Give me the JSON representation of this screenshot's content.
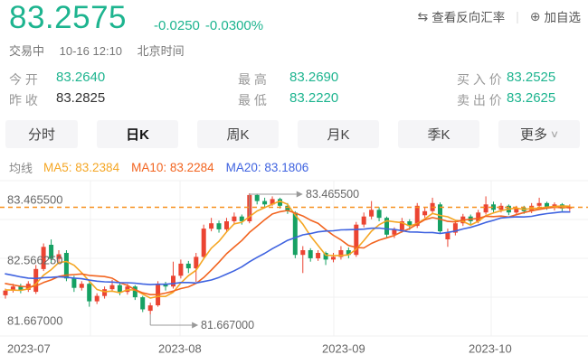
{
  "colors": {
    "quote_green": "#1db48f",
    "up_red": "#eb4432",
    "down_green": "#16a163",
    "ma5": "#f5a623",
    "ma10": "#f2641f",
    "ma20": "#3f63e0",
    "dash_orange": "#f78f1e",
    "grid_line": "#f0f0f2",
    "tab_bg": "#f5f5f7",
    "callout_gray": "#999999"
  },
  "quote": {
    "price": "83.2575",
    "change": "-0.0250",
    "change_pct": "-0.0300%"
  },
  "status": {
    "trading": "交易中",
    "datetime": "10-16 12:10",
    "timezone": "北京时间"
  },
  "header_links": {
    "swap_icon": "⇆",
    "reverse_rate": "查看反向汇率",
    "separator": "|",
    "plus_icon": "⊕",
    "add_watchlist": "加自选"
  },
  "quote_table": {
    "rows": [
      [
        {
          "label": "今  开",
          "value": "83.2640"
        },
        {
          "label": "最  高",
          "value": "83.2690"
        },
        {
          "label": "买 入 价",
          "value": "83.2525"
        }
      ],
      [
        {
          "label": "昨  收",
          "value": "83.2825"
        },
        {
          "label": "最  低",
          "value": "83.2220"
        },
        {
          "label": "卖 出 价",
          "value": "83.2625"
        }
      ]
    ]
  },
  "tabs": [
    {
      "label": "分时"
    },
    {
      "label": "日K",
      "active": true
    },
    {
      "label": "周K"
    },
    {
      "label": "月K"
    },
    {
      "label": "季K"
    },
    {
      "label": "更多",
      "chevron": "∨"
    }
  ],
  "ma_legend": {
    "title": "均线",
    "items": [
      {
        "text": "MA5: 83.2384"
      },
      {
        "text": "MA10: 83.2284"
      },
      {
        "text": "MA20: 83.1806"
      }
    ]
  },
  "chart_data": {
    "type": "candlestick",
    "x_labels": [
      "2023-07",
      "2023-08",
      "2023-09",
      "2023-10"
    ],
    "y_axis": {
      "labels": [
        "83.465500",
        "82.566250",
        "81.667000"
      ],
      "values": [
        83.4655,
        82.56625,
        81.667
      ]
    },
    "ylim": [
      81.55,
      83.55
    ],
    "grid": true,
    "current_price": 83.2575,
    "current_price_line": "dashed-orange",
    "callouts": {
      "high": {
        "label": "83.465500",
        "value": 83.4655,
        "index": 32
      },
      "low": {
        "label": "81.667000",
        "value": 81.667,
        "index": 19
      }
    },
    "ma_periods": [
      5,
      10,
      20
    ],
    "ma_lead_in_closes": [
      82.55,
      82.52,
      82.5,
      82.48,
      82.45,
      82.42,
      82.4,
      82.38,
      82.35,
      82.32,
      82.3,
      82.28,
      82.25,
      82.22,
      82.2,
      82.15,
      82.1,
      82.05,
      82.0,
      81.98
    ],
    "candles": [
      [
        81.95,
        82.05,
        81.9,
        82.02
      ],
      [
        82.02,
        82.12,
        81.99,
        82.08
      ],
      [
        82.08,
        82.12,
        81.98,
        82.03
      ],
      [
        82.03,
        82.16,
        82.0,
        82.12
      ],
      [
        82.0,
        82.4,
        81.97,
        82.34
      ],
      [
        82.34,
        82.72,
        82.31,
        82.67
      ],
      [
        82.7,
        82.78,
        82.42,
        82.49
      ],
      [
        82.49,
        82.62,
        82.44,
        82.56
      ],
      [
        82.58,
        82.62,
        82.16,
        82.2
      ],
      [
        82.2,
        82.24,
        82.0,
        82.06
      ],
      [
        82.06,
        82.16,
        82.02,
        82.12
      ],
      [
        82.12,
        82.14,
        81.78,
        81.86
      ],
      [
        81.86,
        81.98,
        81.82,
        81.94
      ],
      [
        81.94,
        82.08,
        81.9,
        82.04
      ],
      [
        82.04,
        82.18,
        82.0,
        82.1
      ],
      [
        82.1,
        82.13,
        81.95,
        82.0
      ],
      [
        82.0,
        82.12,
        81.96,
        82.08
      ],
      [
        82.08,
        82.1,
        81.88,
        81.92
      ],
      [
        81.92,
        81.94,
        81.7,
        81.74
      ],
      [
        81.72,
        81.84,
        81.667,
        81.8
      ],
      [
        81.8,
        82.16,
        81.78,
        82.12
      ],
      [
        82.12,
        82.15,
        82.02,
        82.08
      ],
      [
        82.08,
        82.45,
        82.05,
        82.24
      ],
      [
        82.24,
        82.48,
        82.2,
        82.42
      ],
      [
        82.42,
        82.46,
        82.28,
        82.35
      ],
      [
        82.35,
        82.58,
        82.15,
        82.52
      ],
      [
        82.52,
        83.0,
        82.48,
        82.94
      ],
      [
        82.94,
        83.1,
        82.9,
        83.02
      ],
      [
        83.02,
        83.06,
        82.88,
        82.93
      ],
      [
        82.93,
        83.1,
        82.9,
        83.05
      ],
      [
        83.05,
        83.18,
        83.0,
        83.12
      ],
      [
        83.12,
        83.15,
        83.0,
        83.05
      ],
      [
        83.05,
        83.4655,
        83.02,
        83.44
      ],
      [
        83.44,
        83.46,
        83.3,
        83.35
      ],
      [
        83.35,
        83.4,
        83.26,
        83.3
      ],
      [
        83.3,
        83.42,
        83.28,
        83.38
      ],
      [
        83.38,
        83.4,
        83.24,
        83.28
      ],
      [
        83.28,
        83.32,
        83.16,
        83.2
      ],
      [
        83.18,
        83.2,
        82.5,
        82.55
      ],
      [
        82.55,
        82.68,
        82.28,
        82.62
      ],
      [
        82.62,
        82.65,
        82.45,
        82.5
      ],
      [
        82.5,
        82.62,
        82.46,
        82.58
      ],
      [
        82.58,
        82.6,
        82.4,
        82.48
      ],
      [
        82.48,
        82.58,
        82.44,
        82.52
      ],
      [
        82.52,
        82.68,
        82.48,
        82.62
      ],
      [
        82.62,
        82.66,
        82.5,
        82.55
      ],
      [
        82.55,
        83.04,
        82.52,
        83.0
      ],
      [
        83.0,
        83.18,
        82.96,
        83.12
      ],
      [
        83.12,
        83.35,
        83.08,
        83.22
      ],
      [
        83.22,
        83.26,
        83.05,
        83.1
      ],
      [
        83.1,
        83.12,
        82.8,
        82.85
      ],
      [
        82.85,
        82.96,
        82.8,
        82.92
      ],
      [
        82.92,
        83.1,
        82.88,
        83.05
      ],
      [
        83.05,
        83.08,
        82.92,
        82.98
      ],
      [
        82.98,
        83.32,
        82.95,
        83.28
      ],
      [
        83.14,
        83.26,
        83.1,
        83.2
      ],
      [
        83.2,
        83.4,
        83.16,
        83.32
      ],
      [
        83.3,
        83.33,
        82.86,
        82.9
      ],
      [
        82.78,
        82.94,
        82.67,
        82.88
      ],
      [
        82.88,
        83.06,
        82.84,
        83.02
      ],
      [
        83.02,
        83.16,
        82.98,
        83.12
      ],
      [
        83.12,
        83.15,
        83.0,
        83.05
      ],
      [
        83.05,
        83.22,
        83.02,
        83.18
      ],
      [
        83.18,
        83.42,
        83.15,
        83.3
      ],
      [
        83.3,
        83.34,
        83.18,
        83.22
      ],
      [
        83.22,
        83.32,
        83.18,
        83.28
      ],
      [
        83.28,
        83.3,
        83.14,
        83.18
      ],
      [
        83.18,
        83.28,
        83.15,
        83.25
      ],
      [
        83.25,
        83.28,
        83.16,
        83.2
      ],
      [
        83.2,
        83.32,
        83.17,
        83.28
      ],
      [
        83.28,
        83.4,
        83.25,
        83.32
      ],
      [
        83.32,
        83.34,
        83.22,
        83.25
      ],
      [
        83.25,
        83.33,
        83.21,
        83.3
      ],
      [
        83.3,
        83.32,
        83.2,
        83.24
      ],
      [
        83.24,
        83.3,
        83.2,
        83.2575
      ]
    ]
  }
}
